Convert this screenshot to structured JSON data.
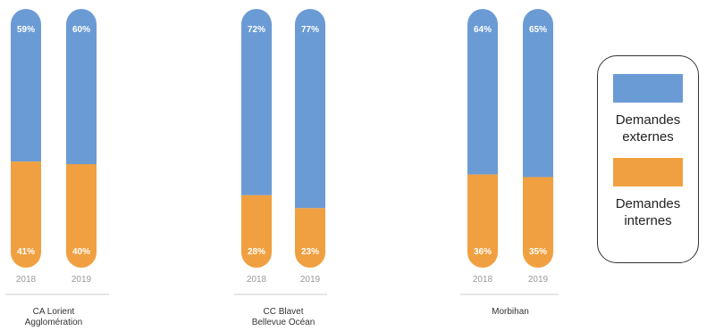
{
  "chart_data": {
    "type": "bar",
    "stacked": true,
    "percent": true,
    "groups": [
      {
        "name": "CA Lorient\nAgglomération",
        "bars": [
          {
            "year": "2018",
            "externes": 59,
            "internes": 41
          },
          {
            "year": "2019",
            "externes": 60,
            "internes": 40
          }
        ]
      },
      {
        "name": "CC Blavet\nBellevue Océan",
        "bars": [
          {
            "year": "2018",
            "externes": 72,
            "internes": 28
          },
          {
            "year": "2019",
            "externes": 77,
            "internes": 23
          }
        ]
      },
      {
        "name": "Morbihan",
        "bars": [
          {
            "year": "2018",
            "externes": 64,
            "internes": 36
          },
          {
            "year": "2019",
            "externes": 65,
            "internes": 35
          }
        ]
      }
    ],
    "series": [
      {
        "key": "externes",
        "name": "Demandes externes",
        "color": "#6b9bd4"
      },
      {
        "key": "internes",
        "name": "Demandes internes",
        "color": "#f0a040"
      }
    ],
    "legend_position": "right",
    "ylim": [
      0,
      100
    ]
  },
  "legend": {
    "externes_label": "Demandes\nexternes",
    "internes_label": "Demandes\ninternes"
  }
}
